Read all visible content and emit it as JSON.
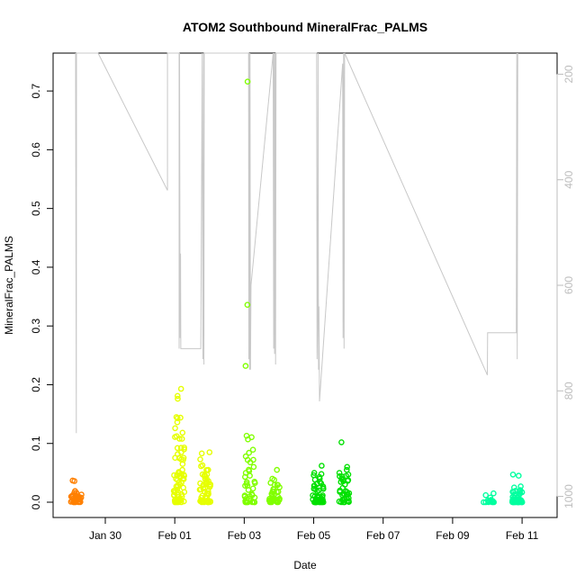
{
  "chart_data": {
    "type": "scatter",
    "title": "ATOM2 Southbound MineralFrac_PALMS",
    "xlabel": "Date",
    "ylabel": "MineralFrac_PALMS",
    "x_axis": {
      "type": "date",
      "range": [
        "2017-01-28 22:30",
        "2017-02-11 13:00"
      ],
      "ticks": [
        {
          "date": "2017-01-30",
          "label": "Jan 30"
        },
        {
          "date": "2017-02-01",
          "label": "Feb 01"
        },
        {
          "date": "2017-02-03",
          "label": "Feb 03"
        },
        {
          "date": "2017-02-05",
          "label": "Feb 05"
        },
        {
          "date": "2017-02-07",
          "label": "Feb 07"
        },
        {
          "date": "2017-02-09",
          "label": "Feb 09"
        },
        {
          "date": "2017-02-11",
          "label": "Feb 11"
        }
      ]
    },
    "y_axis": {
      "range": [
        0,
        0.74
      ],
      "ticks": [
        0.0,
        0.1,
        0.2,
        0.3,
        0.4,
        0.5,
        0.6,
        0.7
      ],
      "tick_labels": [
        "0.0",
        "0.1",
        "0.2",
        "0.3",
        "0.4",
        "0.5",
        "0.6",
        "0.7"
      ]
    },
    "y2_axis": {
      "description": "secondary (right) axis, inverted",
      "range": [
        1040,
        160
      ],
      "ticks": [
        200,
        400,
        600,
        800,
        1000
      ],
      "tick_labels": [
        "200",
        "400",
        "600",
        "800",
        "1000"
      ],
      "color": "#bdbdbd"
    },
    "grid": false,
    "legend": "none",
    "colors": {
      "orange": "#ff8000",
      "yellow": "#e6ff00",
      "lime": "#80ff00",
      "green": "#00e000",
      "cyan": "#00ff9f",
      "line": "#c8c8c8"
    },
    "groups": [
      {
        "date": "2017-01-29 04:00",
        "color": "orange",
        "max": 0.037,
        "count": 40,
        "highlights": [
          0.037,
          0.036,
          0.019,
          0.016,
          0.013,
          0.011,
          0.009,
          0.006
        ]
      },
      {
        "date": "2017-02-01 03:00",
        "color": "yellow",
        "max": 0.193,
        "count": 80,
        "highlights": [
          0.193,
          0.181,
          0.176,
          0.145,
          0.136,
          0.111,
          0.108,
          0.09,
          0.085,
          0.075,
          0.065,
          0.055,
          0.045
        ]
      },
      {
        "date": "2017-02-01 21:00",
        "color": "yellow",
        "max": 0.085,
        "count": 60,
        "highlights": [
          0.085,
          0.083,
          0.073,
          0.063,
          0.055,
          0.045,
          0.04,
          0.033
        ]
      },
      {
        "date": "2017-02-03 04:00",
        "color": "lime",
        "max": 0.716,
        "count": 45,
        "highlights": [
          0.716,
          0.336,
          0.232,
          0.113,
          0.078,
          0.072,
          0.06,
          0.05,
          0.045,
          0.035,
          0.028,
          0.012
        ]
      },
      {
        "date": "2017-02-03 21:00",
        "color": "lime",
        "max": 0.055,
        "count": 40,
        "highlights": [
          0.055,
          0.04,
          0.038,
          0.033,
          0.018,
          0.012
        ]
      },
      {
        "date": "2017-02-05 03:00",
        "color": "green",
        "max": 0.062,
        "count": 60,
        "highlights": [
          0.062,
          0.05,
          0.048,
          0.046,
          0.04,
          0.032,
          0.028,
          0.02
        ]
      },
      {
        "date": "2017-02-05 21:00",
        "color": "green",
        "max": 0.102,
        "count": 40,
        "highlights": [
          0.102,
          0.06,
          0.055,
          0.05,
          0.04,
          0.03,
          0.018
        ]
      },
      {
        "date": "2017-02-10 01:00",
        "color": "cyan",
        "max": 0.015,
        "count": 15,
        "highlights": [
          0.015,
          0.012,
          0.008
        ]
      },
      {
        "date": "2017-02-10 21:00",
        "color": "cyan",
        "max": 0.047,
        "count": 60,
        "highlights": [
          0.047,
          0.045,
          0.027,
          0.025,
          0.02,
          0.017
        ]
      }
    ],
    "altitude_trace": {
      "color": "line",
      "axis": "y2",
      "points": [
        [
          "2017-01-29 03:30",
          160
        ],
        [
          "2017-01-29 03:30",
          200
        ],
        [
          "2017-01-29 04:00",
          880
        ],
        [
          "2017-01-29 04:05",
          160
        ],
        [
          "2017-01-29 19:00",
          160
        ],
        [
          "2017-01-31 19:00",
          420
        ],
        [
          "2017-01-31 19:00",
          160
        ],
        [
          "2017-02-01 03:00",
          160
        ],
        [
          "2017-02-01 03:00",
          720
        ],
        [
          "2017-02-01 03:20",
          160
        ],
        [
          "2017-02-01 03:40",
          700
        ],
        [
          "2017-02-01 04:00",
          540
        ],
        [
          "2017-02-01 04:10",
          720
        ],
        [
          "2017-02-01 18:00",
          720
        ],
        [
          "2017-02-01 19:00",
          160
        ],
        [
          "2017-02-01 19:30",
          740
        ],
        [
          "2017-02-01 20:00",
          160
        ],
        [
          "2017-02-01 20:10",
          750
        ],
        [
          "2017-02-01 20:20",
          160
        ],
        [
          "2017-02-03 03:00",
          160
        ],
        [
          "2017-02-03 03:10",
          740
        ],
        [
          "2017-02-03 03:20",
          160
        ],
        [
          "2017-02-03 03:40",
          760
        ],
        [
          "2017-02-03 04:00",
          160
        ],
        [
          "2017-02-03 04:20",
          760
        ],
        [
          "2017-02-03 04:40",
          600
        ],
        [
          "2017-02-03 20:00",
          160
        ],
        [
          "2017-02-03 20:20",
          720
        ],
        [
          "2017-02-03 20:40",
          160
        ],
        [
          "2017-02-03 21:00",
          730
        ],
        [
          "2017-02-03 21:20",
          160
        ],
        [
          "2017-02-03 21:40",
          750
        ],
        [
          "2017-02-03 22:00",
          160
        ],
        [
          "2017-02-05 02:00",
          160
        ],
        [
          "2017-02-05 02:20",
          740
        ],
        [
          "2017-02-05 02:40",
          680
        ],
        [
          "2017-02-05 03:00",
          160
        ],
        [
          "2017-02-05 03:20",
          760
        ],
        [
          "2017-02-05 03:40",
          640
        ],
        [
          "2017-02-05 04:00",
          820
        ],
        [
          "2017-02-05 20:00",
          180
        ],
        [
          "2017-02-05 20:20",
          700
        ],
        [
          "2017-02-05 20:40",
          160
        ],
        [
          "2017-02-05 21:00",
          720
        ],
        [
          "2017-02-05 21:20",
          160
        ],
        [
          "2017-02-10 00:00",
          770
        ],
        [
          "2017-02-10 00:10",
          690
        ],
        [
          "2017-02-10 20:00",
          690
        ],
        [
          "2017-02-10 20:20",
          160
        ],
        [
          "2017-02-10 20:40",
          740
        ],
        [
          "2017-02-10 21:00",
          160
        ]
      ]
    }
  }
}
